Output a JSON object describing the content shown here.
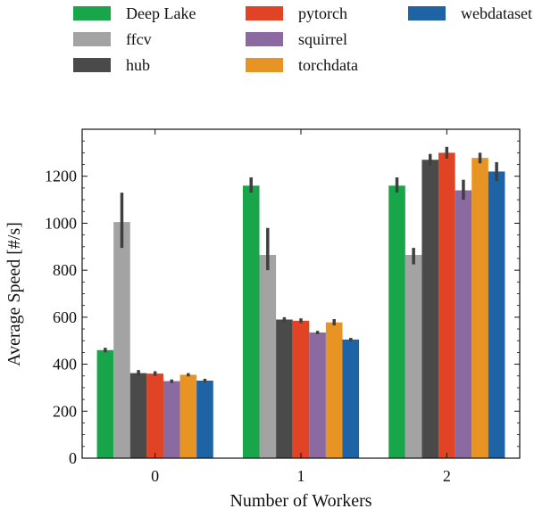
{
  "chart_data": {
    "type": "bar",
    "title": "",
    "xlabel": "Number of Workers",
    "ylabel": "Average Speed [#/s]",
    "ylim": [
      0,
      1400
    ],
    "yticks": [
      0,
      200,
      400,
      600,
      800,
      1000,
      1200
    ],
    "categories": [
      "0",
      "1",
      "2"
    ],
    "legend_position": "top",
    "grid": false,
    "series": [
      {
        "name": "Deep Lake",
        "color": "#19a64a",
        "values": [
          460,
          1160,
          1160
        ],
        "error": [
          [
            450,
            470
          ],
          [
            1130,
            1195
          ],
          [
            1130,
            1195
          ]
        ]
      },
      {
        "name": "ffcv",
        "color": "#a3a3a3",
        "values": [
          1005,
          865,
          865
        ],
        "error": [
          [
            895,
            1130
          ],
          [
            800,
            980
          ],
          [
            825,
            895
          ]
        ]
      },
      {
        "name": "hub",
        "color": "#4a4a4a",
        "values": [
          362,
          590,
          1270
        ],
        "error": [
          [
            350,
            375
          ],
          [
            580,
            600
          ],
          [
            1245,
            1295
          ]
        ]
      },
      {
        "name": "pytorch",
        "color": "#e04424",
        "values": [
          360,
          585,
          1300
        ],
        "error": [
          [
            350,
            370
          ],
          [
            575,
            595
          ],
          [
            1275,
            1325
          ]
        ]
      },
      {
        "name": "squirrel",
        "color": "#8a6aa0",
        "values": [
          328,
          535,
          1140
        ],
        "error": [
          [
            320,
            335
          ],
          [
            528,
            542
          ],
          [
            1100,
            1185
          ]
        ]
      },
      {
        "name": "torchdata",
        "color": "#e89424",
        "values": [
          355,
          578,
          1278
        ],
        "error": [
          [
            348,
            362
          ],
          [
            565,
            592
          ],
          [
            1255,
            1300
          ]
        ]
      },
      {
        "name": "webdataset",
        "color": "#1e63a5",
        "values": [
          330,
          505,
          1220
        ],
        "error": [
          [
            322,
            338
          ],
          [
            498,
            512
          ],
          [
            1180,
            1260
          ]
        ]
      }
    ]
  }
}
